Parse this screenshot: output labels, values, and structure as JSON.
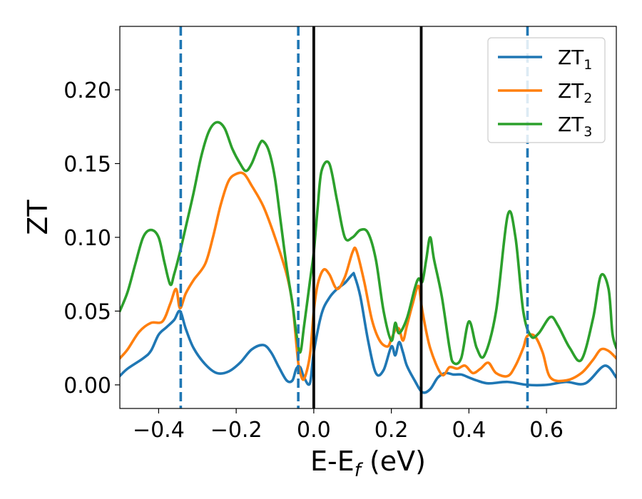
{
  "chart_data": {
    "type": "line",
    "title": "",
    "xlabel": {
      "main": "E-E",
      "sub": "f",
      "unit": " (eV)"
    },
    "ylabel": "ZT",
    "xlim": [
      -0.5,
      0.78
    ],
    "ylim": [
      -0.016,
      0.243
    ],
    "xticks": [
      -0.4,
      -0.2,
      0.0,
      0.2,
      0.4,
      0.6
    ],
    "xtick_labels": [
      "−0.4",
      "−0.2",
      "0.0",
      "0.2",
      "0.4",
      "0.6"
    ],
    "yticks": [
      0.0,
      0.05,
      0.1,
      0.15,
      0.2
    ],
    "ytick_labels": [
      "0.00",
      "0.05",
      "0.10",
      "0.15",
      "0.20"
    ],
    "grid": false,
    "legend": {
      "position": "top-right"
    },
    "vlines_dashed": {
      "x": [
        -0.343,
        -0.04,
        0.551
      ],
      "color": "#1f77b4"
    },
    "vlines_solid": {
      "x": [
        0.0,
        0.277
      ],
      "color": "#000000"
    },
    "series": [
      {
        "name": "ZT",
        "sub": "1",
        "color": "#1f77b4",
        "x": [
          -0.5,
          -0.48,
          -0.44,
          -0.42,
          -0.4,
          -0.38,
          -0.36,
          -0.345,
          -0.33,
          -0.31,
          -0.28,
          -0.25,
          -0.22,
          -0.19,
          -0.16,
          -0.13,
          -0.11,
          -0.09,
          -0.07,
          -0.055,
          -0.045,
          -0.035,
          -0.025,
          -0.01,
          0.0,
          0.02,
          0.04,
          0.06,
          0.08,
          0.1,
          0.105,
          0.12,
          0.14,
          0.16,
          0.18,
          0.2,
          0.21,
          0.22,
          0.23,
          0.24,
          0.26,
          0.28,
          0.3,
          0.32,
          0.34,
          0.36,
          0.38,
          0.4,
          0.42,
          0.45,
          0.5,
          0.55,
          0.6,
          0.65,
          0.7,
          0.75,
          0.78
        ],
        "values": [
          0.006,
          0.011,
          0.018,
          0.023,
          0.034,
          0.039,
          0.044,
          0.05,
          0.038,
          0.025,
          0.014,
          0.008,
          0.009,
          0.015,
          0.024,
          0.027,
          0.022,
          0.012,
          0.003,
          0.003,
          0.011,
          0.012,
          0.005,
          0.001,
          0.022,
          0.048,
          0.059,
          0.065,
          0.069,
          0.075,
          0.074,
          0.06,
          0.03,
          0.008,
          0.01,
          0.026,
          0.02,
          0.029,
          0.022,
          0.013,
          0.003,
          -0.005,
          -0.003,
          0.005,
          0.008,
          0.007,
          0.007,
          0.005,
          0.003,
          0.001,
          0.002,
          0.0,
          0.0,
          0.002,
          0.001,
          0.013,
          0.005
        ]
      },
      {
        "name": "ZT",
        "sub": "2",
        "color": "#ff7f0e",
        "x": [
          -0.5,
          -0.48,
          -0.45,
          -0.42,
          -0.39,
          -0.37,
          -0.355,
          -0.345,
          -0.33,
          -0.31,
          -0.28,
          -0.26,
          -0.24,
          -0.22,
          -0.2,
          -0.18,
          -0.16,
          -0.13,
          -0.1,
          -0.07,
          -0.055,
          -0.045,
          -0.04,
          -0.035,
          -0.025,
          -0.01,
          0.0,
          0.01,
          0.025,
          0.04,
          0.06,
          0.08,
          0.1,
          0.11,
          0.13,
          0.15,
          0.17,
          0.19,
          0.2,
          0.21,
          0.22,
          0.23,
          0.24,
          0.255,
          0.27,
          0.28,
          0.3,
          0.33,
          0.35,
          0.37,
          0.39,
          0.41,
          0.43,
          0.45,
          0.47,
          0.5,
          0.52,
          0.54,
          0.55,
          0.57,
          0.59,
          0.61,
          0.65,
          0.69,
          0.72,
          0.74,
          0.76,
          0.78
        ],
        "values": [
          0.018,
          0.024,
          0.036,
          0.042,
          0.043,
          0.055,
          0.065,
          0.052,
          0.062,
          0.071,
          0.082,
          0.1,
          0.122,
          0.138,
          0.143,
          0.143,
          0.135,
          0.121,
          0.1,
          0.075,
          0.055,
          0.028,
          0.015,
          0.008,
          0.004,
          0.02,
          0.05,
          0.068,
          0.078,
          0.075,
          0.065,
          0.073,
          0.09,
          0.091,
          0.07,
          0.044,
          0.03,
          0.026,
          0.031,
          0.037,
          0.038,
          0.03,
          0.04,
          0.055,
          0.067,
          0.05,
          0.025,
          0.007,
          0.012,
          0.011,
          0.013,
          0.008,
          0.011,
          0.015,
          0.008,
          0.006,
          0.013,
          0.025,
          0.033,
          0.033,
          0.022,
          0.005,
          0.003,
          0.008,
          0.017,
          0.024,
          0.023,
          0.018
        ]
      },
      {
        "name": "ZT",
        "sub": "3",
        "color": "#2ca02c",
        "x": [
          -0.5,
          -0.48,
          -0.46,
          -0.44,
          -0.42,
          -0.4,
          -0.385,
          -0.37,
          -0.36,
          -0.345,
          -0.33,
          -0.31,
          -0.29,
          -0.27,
          -0.25,
          -0.23,
          -0.21,
          -0.19,
          -0.175,
          -0.16,
          -0.14,
          -0.13,
          -0.115,
          -0.1,
          -0.085,
          -0.07,
          -0.055,
          -0.045,
          -0.035,
          -0.025,
          -0.01,
          0.0,
          0.01,
          0.02,
          0.04,
          0.06,
          0.08,
          0.1,
          0.12,
          0.14,
          0.16,
          0.18,
          0.2,
          0.21,
          0.22,
          0.24,
          0.26,
          0.27,
          0.28,
          0.29,
          0.3,
          0.31,
          0.33,
          0.35,
          0.36,
          0.38,
          0.4,
          0.42,
          0.44,
          0.47,
          0.5,
          0.52,
          0.54,
          0.56,
          0.58,
          0.61,
          0.63,
          0.66,
          0.69,
          0.72,
          0.74,
          0.76,
          0.77,
          0.78
        ],
        "values": [
          0.05,
          0.063,
          0.082,
          0.1,
          0.105,
          0.1,
          0.083,
          0.068,
          0.075,
          0.09,
          0.107,
          0.13,
          0.155,
          0.172,
          0.178,
          0.174,
          0.16,
          0.15,
          0.145,
          0.15,
          0.163,
          0.165,
          0.158,
          0.14,
          0.11,
          0.08,
          0.055,
          0.035,
          0.022,
          0.04,
          0.07,
          0.09,
          0.12,
          0.145,
          0.15,
          0.125,
          0.1,
          0.1,
          0.105,
          0.103,
          0.085,
          0.05,
          0.03,
          0.042,
          0.035,
          0.045,
          0.065,
          0.072,
          0.07,
          0.085,
          0.1,
          0.085,
          0.06,
          0.025,
          0.015,
          0.018,
          0.043,
          0.025,
          0.02,
          0.05,
          0.115,
          0.1,
          0.05,
          0.033,
          0.035,
          0.046,
          0.04,
          0.025,
          0.017,
          0.045,
          0.074,
          0.065,
          0.035,
          0.025
        ]
      }
    ]
  }
}
